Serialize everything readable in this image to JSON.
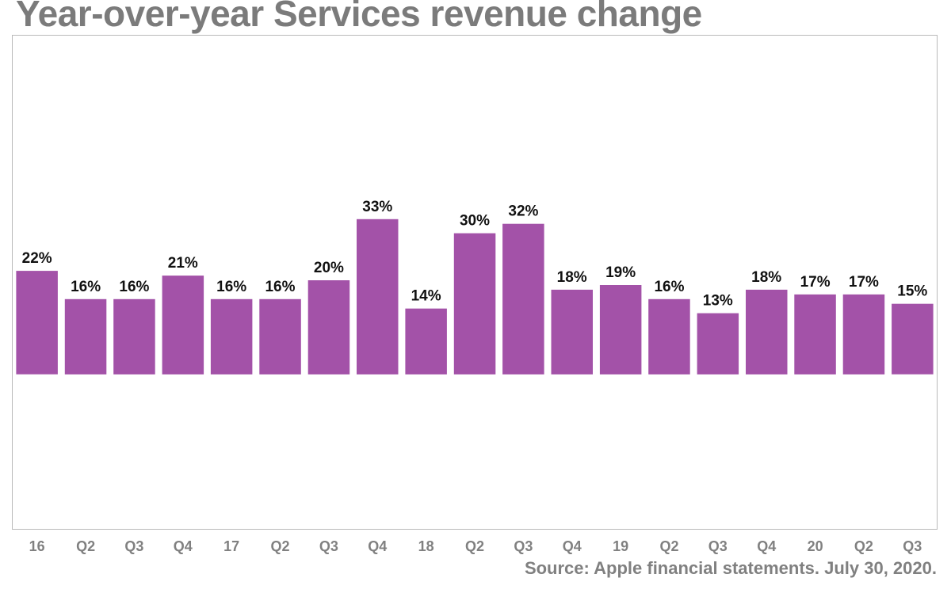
{
  "chart_data": {
    "type": "bar",
    "title": "Year-over-year Services revenue change",
    "categories": [
      "16",
      "Q2",
      "Q3",
      "Q4",
      "17",
      "Q2",
      "Q3",
      "Q4",
      "18",
      "Q2",
      "Q3",
      "Q4",
      "19",
      "Q2",
      "Q3",
      "Q4",
      "20",
      "Q2",
      "Q3"
    ],
    "values": [
      22,
      16,
      16,
      21,
      16,
      16,
      20,
      33,
      14,
      30,
      32,
      18,
      19,
      16,
      13,
      18,
      17,
      17,
      15
    ],
    "labels": [
      "22%",
      "16%",
      "16%",
      "21%",
      "16%",
      "16%",
      "20%",
      "33%",
      "14%",
      "30%",
      "32%",
      "18%",
      "19%",
      "16%",
      "13%",
      "18%",
      "17%",
      "17%",
      "15%"
    ],
    "unit": "%",
    "xlabel": "",
    "ylabel": "",
    "ylim": [
      -33,
      72
    ],
    "grid": false,
    "legend": "none",
    "bar_color": "#a352a8",
    "source": "Source: Apple financial statements. July 30, 2020."
  }
}
